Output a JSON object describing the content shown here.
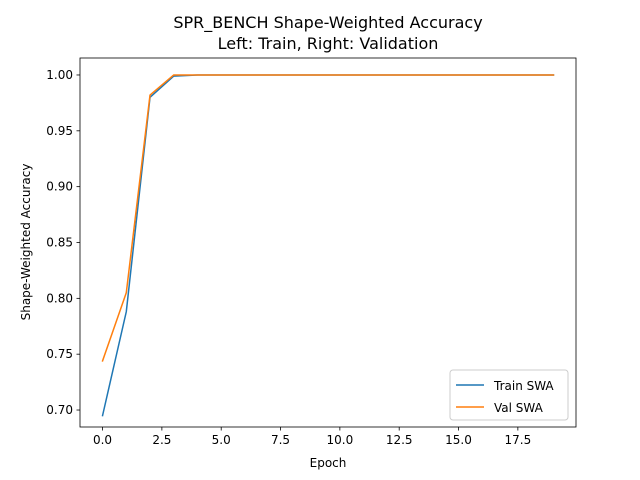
{
  "chart_data": {
    "type": "line",
    "title": "SPR_BENCH Shape-Weighted Accuracy",
    "subtitle": "Left: Train, Right: Validation",
    "xlabel": "Epoch",
    "ylabel": "Shape-Weighted Accuracy",
    "xlim": [
      -0.95,
      19.95
    ],
    "ylim": [
      0.6848,
      1.0152
    ],
    "xticks": [
      0,
      2.5,
      5,
      7.5,
      10,
      12.5,
      15,
      17.5
    ],
    "xtick_labels": [
      "0.0",
      "2.5",
      "5.0",
      "7.5",
      "10.0",
      "12.5",
      "15.0",
      "17.5"
    ],
    "yticks": [
      0.7,
      0.75,
      0.8,
      0.85,
      0.9,
      0.95,
      1.0
    ],
    "ytick_labels": [
      "0.70",
      "0.75",
      "0.80",
      "0.85",
      "0.90",
      "0.95",
      "1.00"
    ],
    "grid": false,
    "legend_position": "lower right",
    "x": [
      0,
      1,
      2,
      3,
      4,
      5,
      6,
      7,
      8,
      9,
      10,
      11,
      12,
      13,
      14,
      15,
      16,
      17,
      18,
      19
    ],
    "series": [
      {
        "name": "Train SWA",
        "color": "#1f77b4",
        "values": [
          0.695,
          0.788,
          0.98,
          0.999,
          1.0,
          1.0,
          1.0,
          1.0,
          1.0,
          1.0,
          1.0,
          1.0,
          1.0,
          1.0,
          1.0,
          1.0,
          1.0,
          1.0,
          1.0,
          1.0
        ]
      },
      {
        "name": "Val SWA",
        "color": "#ff7f0e",
        "values": [
          0.744,
          0.805,
          0.982,
          1.0,
          1.0,
          1.0,
          1.0,
          1.0,
          1.0,
          1.0,
          1.0,
          1.0,
          1.0,
          1.0,
          1.0,
          1.0,
          1.0,
          1.0,
          1.0,
          1.0
        ]
      }
    ]
  }
}
